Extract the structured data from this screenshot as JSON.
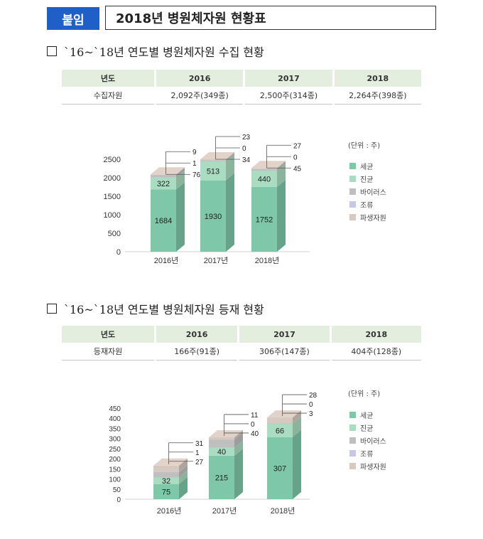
{
  "header": {
    "badge": "붙임",
    "title": "2018년 병원체자원 현황표"
  },
  "sections": [
    {
      "title": "`16~`18년  연도별 병원체자원 수집 현황",
      "table": {
        "headers": [
          "년도",
          "2016",
          "2017",
          "2018"
        ],
        "row": [
          "수집자원",
          "2,092주(349종)",
          "2,500주(314종)",
          "2,264주(398종)"
        ]
      }
    },
    {
      "title": "`16~`18년  연도별 병원체자원 등재 현황",
      "table": {
        "headers": [
          "년도",
          "2016",
          "2017",
          "2018"
        ],
        "row": [
          "등재자원",
          "166주(91종)",
          "306주(147종)",
          "404주(128종)"
        ]
      }
    }
  ],
  "legend": {
    "unit": "(단위 : 주)",
    "items": [
      {
        "label": "세균",
        "color": "#7ec7a8"
      },
      {
        "label": "진균",
        "color": "#a9dcc0"
      },
      {
        "label": "바이러스",
        "color": "#bfbfbf"
      },
      {
        "label": "조류",
        "color": "#c7c7e6"
      },
      {
        "label": "파생자원",
        "color": "#d6c9bf"
      }
    ]
  },
  "chart_data": [
    {
      "type": "bar",
      "stacked": true,
      "categories": [
        "2016년",
        "2017년",
        "2018년"
      ],
      "ylim": [
        0,
        2500
      ],
      "yticks": [
        0,
        500,
        1000,
        1500,
        2000,
        2500
      ],
      "series": [
        {
          "name": "세균",
          "values": [
            1684,
            1930,
            1752
          ]
        },
        {
          "name": "진균",
          "values": [
            322,
            513,
            440
          ]
        },
        {
          "name": "바이러스",
          "values": [
            76,
            34,
            45
          ]
        },
        {
          "name": "조류",
          "values": [
            1,
            0,
            0
          ]
        },
        {
          "name": "파생자원",
          "values": [
            9,
            23,
            27
          ]
        }
      ]
    },
    {
      "type": "bar",
      "stacked": true,
      "categories": [
        "2016년",
        "2017년",
        "2018년"
      ],
      "ylim": [
        0,
        450
      ],
      "yticks": [
        0,
        50,
        100,
        150,
        200,
        250,
        300,
        350,
        400,
        450
      ],
      "series": [
        {
          "name": "세균",
          "values": [
            75,
            215,
            307
          ]
        },
        {
          "name": "진균",
          "values": [
            32,
            40,
            66
          ]
        },
        {
          "name": "바이러스",
          "values": [
            27,
            40,
            3
          ]
        },
        {
          "name": "조류",
          "values": [
            1,
            0,
            0
          ]
        },
        {
          "name": "파생자원",
          "values": [
            31,
            11,
            28
          ]
        }
      ]
    }
  ]
}
